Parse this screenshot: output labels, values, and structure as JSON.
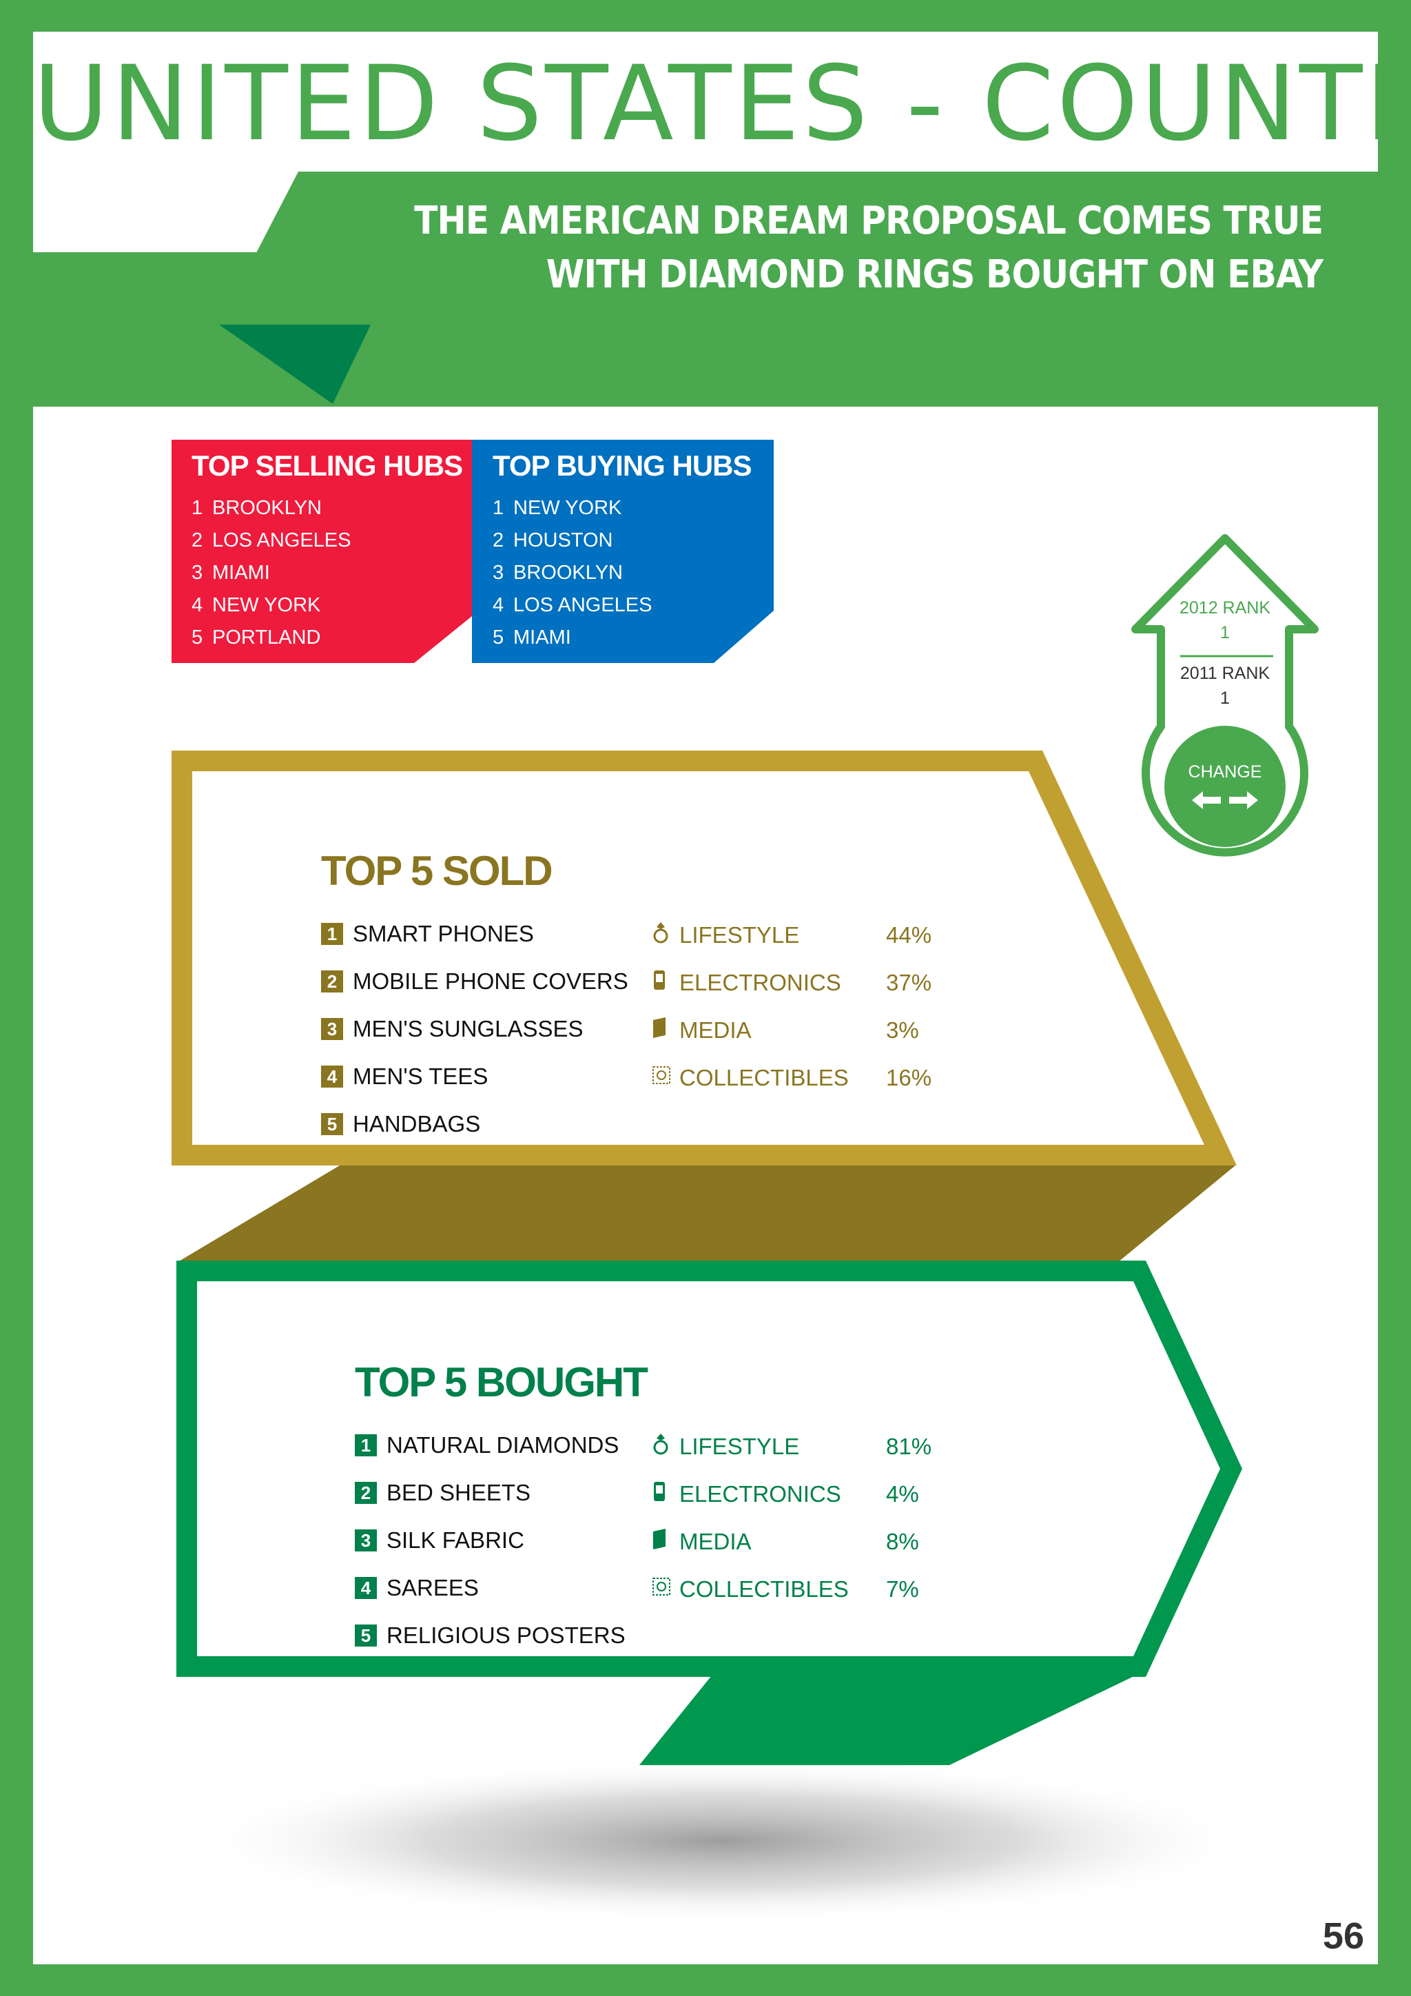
{
  "title": "UNITED STATES - COUNTRY",
  "subtitle": {
    "line1": "THE AMERICAN DREAM PROPOSAL COMES TRUE",
    "line2": "WITH DIAMOND RINGS BOUGHT ON EBAY"
  },
  "selling_hubs": {
    "title": "TOP SELLING HUBS",
    "items": [
      {
        "n": "1",
        "name": "BROOKLYN"
      },
      {
        "n": "2",
        "name": "LOS ANGELES"
      },
      {
        "n": "3",
        "name": "MIAMI"
      },
      {
        "n": "4",
        "name": "NEW YORK"
      },
      {
        "n": "5",
        "name": "PORTLAND"
      }
    ]
  },
  "buying_hubs": {
    "title": "TOP BUYING HUBS",
    "items": [
      {
        "n": "1",
        "name": "NEW YORK"
      },
      {
        "n": "2",
        "name": "HOUSTON"
      },
      {
        "n": "3",
        "name": "BROOKLYN"
      },
      {
        "n": "4",
        "name": "LOS ANGELES"
      },
      {
        "n": "5",
        "name": "MIAMI"
      }
    ]
  },
  "rank": {
    "label_2012": "2012 RANK",
    "value_2012": "1",
    "label_2011": "2011 RANK",
    "value_2011": "1",
    "change_label": "CHANGE",
    "change_icon": "left-right-arrows-icon"
  },
  "sold": {
    "heading": "TOP 5 SOLD",
    "items": [
      {
        "n": "1",
        "name": "SMART PHONES"
      },
      {
        "n": "2",
        "name": "MOBILE PHONE COVERS"
      },
      {
        "n": "3",
        "name": "MEN'S SUNGLASSES"
      },
      {
        "n": "4",
        "name": "MEN'S TEES"
      },
      {
        "n": "5",
        "name": "HANDBAGS"
      }
    ],
    "categories": [
      {
        "icon": "ring-icon",
        "label": "LIFESTYLE",
        "percent": "44%"
      },
      {
        "icon": "phone-icon",
        "label": "ELECTRONICS",
        "percent": "37%"
      },
      {
        "icon": "book-icon",
        "label": "MEDIA",
        "percent": "3%"
      },
      {
        "icon": "stamp-icon",
        "label": "COLLECTIBLES",
        "percent": "16%"
      }
    ]
  },
  "bought": {
    "heading": "TOP 5 BOUGHT",
    "items": [
      {
        "n": "1",
        "name": "NATURAL DIAMONDS"
      },
      {
        "n": "2",
        "name": "BED SHEETS"
      },
      {
        "n": "3",
        "name": "SILK FABRIC"
      },
      {
        "n": "4",
        "name": "SAREES"
      },
      {
        "n": "5",
        "name": "RELIGIOUS POSTERS"
      }
    ],
    "categories": [
      {
        "icon": "ring-icon",
        "label": "LIFESTYLE",
        "percent": "81%"
      },
      {
        "icon": "phone-icon",
        "label": "ELECTRONICS",
        "percent": "4%"
      },
      {
        "icon": "book-icon",
        "label": "MEDIA",
        "percent": "8%"
      },
      {
        "icon": "stamp-icon",
        "label": "COLLECTIBLES",
        "percent": "7%"
      }
    ]
  },
  "colors": {
    "brand_green": "#4aa84f",
    "dark_green": "#00804a",
    "bought_green": "#00974f",
    "sold_gold": "#c0a030",
    "sold_dark": "#8a7520",
    "selling_red": "#ee1b3d",
    "buying_blue": "#0070c0"
  },
  "page_number": "56"
}
